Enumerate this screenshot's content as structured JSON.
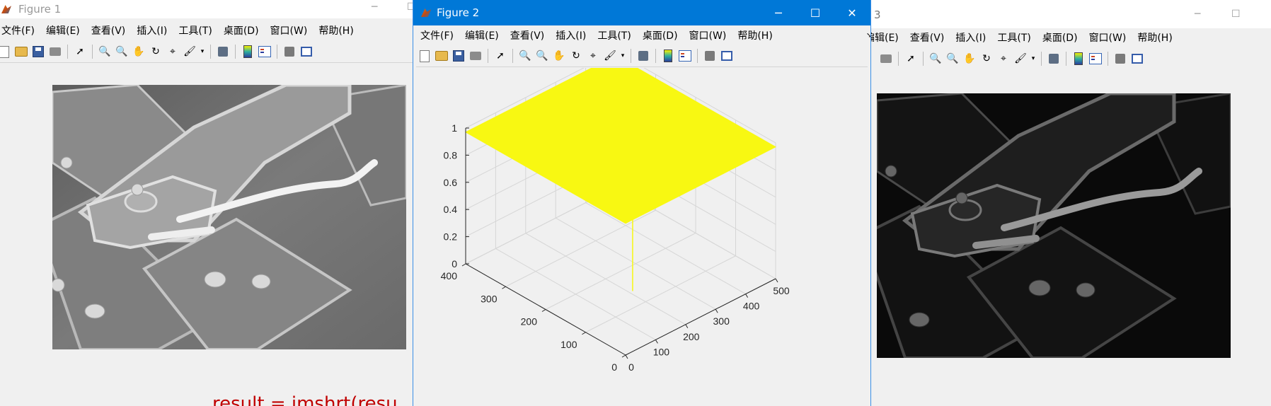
{
  "figure1": {
    "title": "Figure 1",
    "menu": [
      "文件(F)",
      "编辑(E)",
      "查看(V)",
      "插入(I)",
      "工具(T)",
      "桌面(D)",
      "窗口(W)",
      "帮助(H)"
    ],
    "image_desc": "grayscale SEM micrograph"
  },
  "figure2": {
    "title": "Figure 2",
    "menu": [
      "文件(F)",
      "编辑(E)",
      "查看(V)",
      "插入(I)",
      "工具(T)",
      "桌面(D)",
      "窗口(W)",
      "帮助(H)"
    ],
    "caption_buttons": [
      "minimize-icon",
      "maximize-icon",
      "close-icon"
    ]
  },
  "figure3": {
    "title_fragment": "3",
    "menu": [
      "编辑(E)",
      "查看(V)",
      "插入(I)",
      "工具(T)",
      "桌面(D)",
      "窗口(W)",
      "帮助(H)"
    ]
  },
  "background_code": "result = imshrt(resu",
  "chart_data": {
    "type": "surface",
    "title": "",
    "xlabel": "",
    "ylabel": "",
    "zlabel": "",
    "x_ticks": [
      "0",
      "100",
      "200",
      "300",
      "400",
      "500"
    ],
    "y_ticks": [
      "0",
      "100",
      "200",
      "300",
      "400"
    ],
    "z_ticks": [
      "0",
      "0.2",
      "0.4",
      "0.6",
      "0.8",
      "1"
    ],
    "xlim": [
      0,
      500
    ],
    "ylim": [
      0,
      400
    ],
    "zlim": [
      0,
      1
    ],
    "surface": {
      "z": 0.97,
      "color": "#f8f812"
    },
    "spike": {
      "x": 0,
      "y": 0,
      "z_from": 0,
      "z_to": 0.97,
      "color": "#f8f812"
    },
    "grid": true
  },
  "colors": {
    "active_title": "#0078d7",
    "surface": "#f8f812",
    "background_text": "#c00000"
  }
}
